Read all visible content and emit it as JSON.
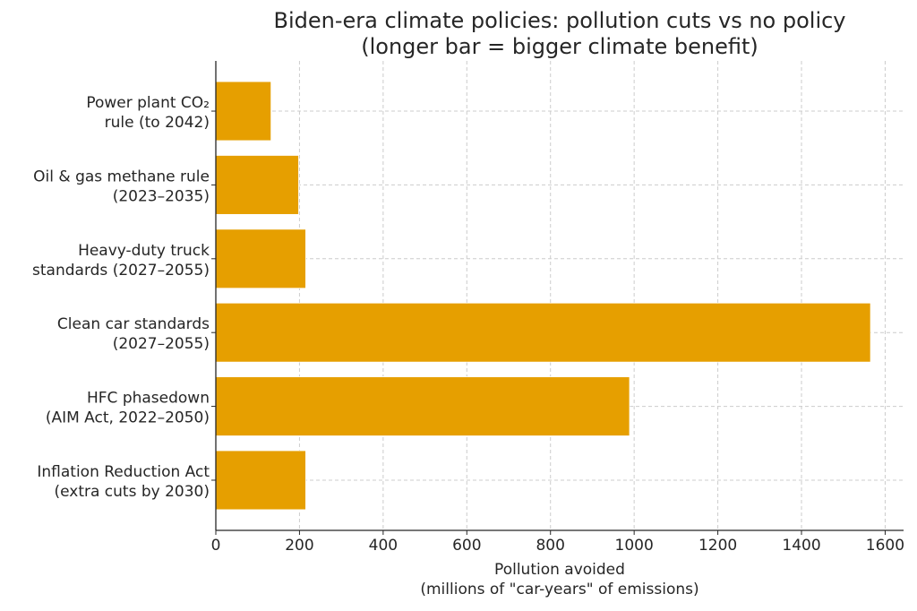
{
  "chart_data": {
    "type": "bar",
    "orientation": "horizontal",
    "title": [
      "Biden-era climate policies: pollution cuts vs no policy",
      "(longer bar = bigger climate benefit)"
    ],
    "xlabel": [
      "Pollution avoided",
      "(millions of \"car-years\" of emissions)"
    ],
    "ylabel": "",
    "categories": [
      [
        "Power plant CO₂",
        "rule (to 2042)"
      ],
      [
        "Oil & gas methane rule",
        "(2023–2035)"
      ],
      [
        "Heavy-duty truck",
        "standards (2027–2055)"
      ],
      [
        "Clean car standards",
        "(2027–2055)"
      ],
      [
        "HFC phasedown",
        "(AIM Act, 2022–2050)"
      ],
      [
        "Inflation Reduction Act",
        "(extra cuts by 2030)"
      ]
    ],
    "values": [
      132,
      198,
      215,
      1565,
      989,
      215
    ],
    "xlim": [
      0,
      1644
    ],
    "xticks": [
      0,
      200,
      400,
      600,
      800,
      1000,
      1200,
      1400,
      1600
    ],
    "grid": true,
    "bar_color": "#E69F00"
  }
}
